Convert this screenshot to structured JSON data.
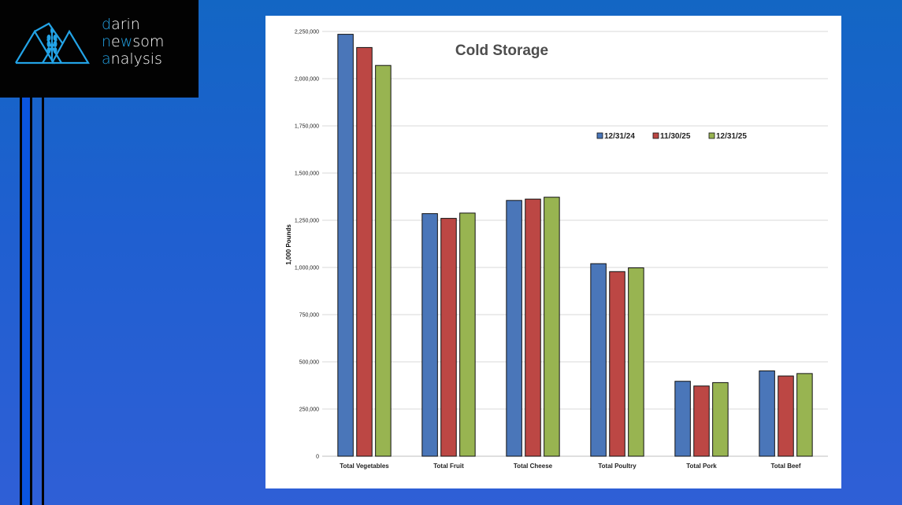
{
  "logo": {
    "line1_accent": "d",
    "line1_rest": "arin",
    "line2_accent": "n",
    "line2_mid": "e",
    "line2_accent2": "w",
    "line2_rest": "som",
    "line3_accent": "a",
    "line3_rest": "nalysis",
    "icon": "mountain-wheat-logo"
  },
  "colors": {
    "background": "#1f5fd0",
    "logo_accent": "#23a3e6",
    "series": [
      "#4a76b9",
      "#bc4744",
      "#98b451"
    ]
  },
  "chart_data": {
    "type": "bar",
    "title": "Cold Storage",
    "xlabel": "",
    "ylabel": "1,000 Pounds",
    "ylim": [
      0,
      2250000
    ],
    "yticks": [
      0,
      250000,
      500000,
      750000,
      1000000,
      1250000,
      1500000,
      1750000,
      2000000,
      2250000
    ],
    "ytick_labels": [
      "0",
      "250,000",
      "500,000",
      "750,000",
      "1,000,000",
      "1,250,000",
      "1,500,000",
      "1,750,000",
      "2,000,000",
      "2,250,000"
    ],
    "grid": true,
    "legend_position": "top-right",
    "categories": [
      "Total Vegetables",
      "Total Fruit",
      "Total Cheese",
      "Total Poultry",
      "Total Pork",
      "Total Beef"
    ],
    "series": [
      {
        "name": "12/31/24",
        "values": [
          2235000,
          1285000,
          1355000,
          1020000,
          397000,
          452000
        ]
      },
      {
        "name": "11/30/25",
        "values": [
          2165000,
          1260000,
          1362000,
          978000,
          372000,
          425000
        ]
      },
      {
        "name": "12/31/25",
        "values": [
          2070000,
          1288000,
          1372000,
          998000,
          390000,
          438000
        ]
      }
    ]
  }
}
